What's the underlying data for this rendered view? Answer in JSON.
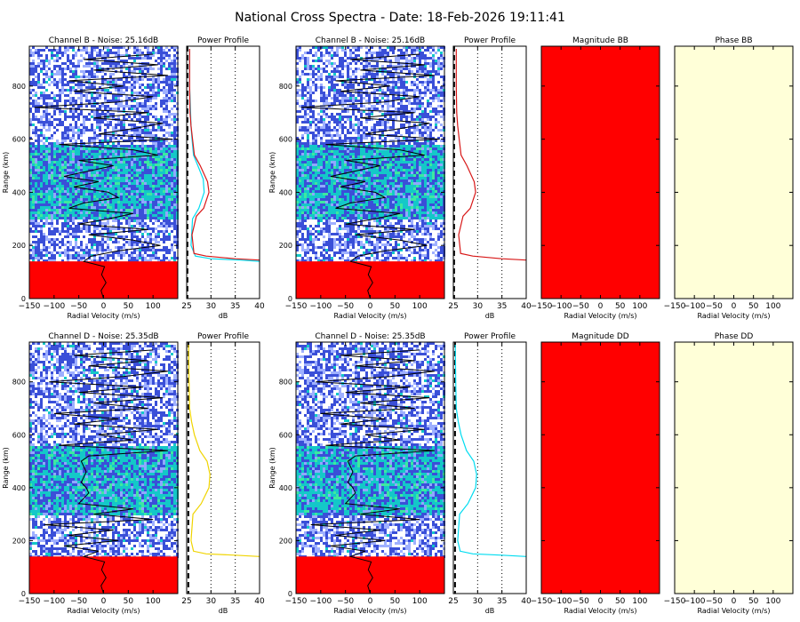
{
  "title": "National Cross Spectra - Date: 18-Feb-2026 19:11:41",
  "colors": {
    "spectrum_low": "#3a4fd8",
    "spectrum_mid": "#14c8c8",
    "spectrum_high": "#3ee8a0",
    "clutter": "#ff0000",
    "magnitude_fill": "#ff0000",
    "phase_fill": "#ffffd8",
    "profile_cyan": "#00dcf0",
    "profile_red": "#d81818",
    "profile_yellow": "#f0d400"
  },
  "chart_data": [
    {
      "id": "spec_B_1",
      "type": "heatmap",
      "title": "Channel B - Noise: 25.16dB",
      "xlabel": "Radial Velocity (m/s)",
      "ylabel": "Range (km)",
      "xlim": [
        -150,
        150
      ],
      "ylim": [
        0,
        950
      ],
      "xticks": [
        -150,
        -100,
        -50,
        0,
        50,
        100
      ],
      "yticks": [
        0,
        200,
        400,
        600,
        800
      ],
      "clutter_below_km": 140,
      "signal_band_km": [
        300,
        580
      ],
      "doppler_trace": {
        "range_km": [
          0,
          30,
          60,
          90,
          120,
          140,
          160,
          180,
          200,
          220,
          240,
          260,
          280,
          300,
          320,
          340,
          360,
          380,
          400,
          420,
          440,
          460,
          480,
          500,
          520,
          540,
          560,
          580,
          600,
          620,
          640,
          660,
          680,
          700,
          720,
          740,
          760,
          780,
          800,
          820,
          840,
          860,
          880,
          900,
          920
        ],
        "velocity_ms": [
          0,
          -5,
          5,
          -4,
          2,
          -40,
          -25,
          30,
          115,
          60,
          -30,
          90,
          -50,
          10,
          60,
          -70,
          -40,
          30,
          10,
          -60,
          -10,
          -80,
          -30,
          20,
          -50,
          110,
          60,
          -90,
          140,
          -10,
          60,
          120,
          -20,
          90,
          -140,
          30,
          100,
          -60,
          40,
          -70,
          130,
          -20,
          110,
          -40,
          100
        ]
      }
    },
    {
      "id": "power_B_1",
      "type": "line",
      "title": "Power Profile",
      "xlabel": "dB",
      "ylabel": "",
      "xlim": [
        25,
        40
      ],
      "ylim": [
        0,
        950
      ],
      "xticks": [
        25,
        30,
        35,
        40
      ],
      "noise_db": 25.16,
      "series": [
        {
          "color": "cyan",
          "x": [
            40,
            36,
            30,
            26.8,
            25.9,
            26.2,
            27.5,
            28.6,
            28.4,
            27.3,
            26.4,
            26.1,
            25.9,
            25.8,
            25.6,
            25.6
          ],
          "y": [
            140,
            145,
            150,
            160,
            200,
            300,
            340,
            400,
            450,
            500,
            540,
            600,
            650,
            700,
            800,
            940
          ]
        },
        {
          "color": "red",
          "x": [
            40,
            35,
            29,
            26.5,
            26.1,
            27,
            28.5,
            29.6,
            29.3,
            27.8,
            26.6,
            26.2,
            25.9,
            25.7,
            25.6,
            25.6
          ],
          "y": [
            145,
            150,
            160,
            170,
            240,
            310,
            340,
            400,
            440,
            500,
            540,
            600,
            650,
            700,
            800,
            940
          ]
        }
      ]
    },
    {
      "id": "spec_B_2",
      "type": "heatmap",
      "title": "Channel B - Noise: 25.16dB",
      "xlabel": "Radial Velocity (m/s)",
      "ylabel": "Range (km)",
      "xlim": [
        -150,
        150
      ],
      "ylim": [
        0,
        950
      ],
      "xticks": [
        -150,
        -100,
        -50,
        0,
        50,
        100
      ],
      "yticks": [
        0,
        200,
        400,
        600,
        800
      ],
      "clutter_below_km": 140,
      "signal_band_km": [
        300,
        580
      ],
      "doppler_trace": {
        "range_km": [
          0,
          30,
          60,
          90,
          120,
          140,
          160,
          180,
          200,
          220,
          240,
          260,
          280,
          300,
          320,
          340,
          360,
          380,
          400,
          420,
          440,
          460,
          480,
          500,
          520,
          540,
          560,
          580,
          600,
          620,
          640,
          660,
          680,
          700,
          720,
          740,
          760,
          780,
          800,
          820,
          840,
          860,
          880,
          900,
          920
        ],
        "velocity_ms": [
          0,
          -5,
          5,
          -4,
          2,
          -40,
          -25,
          30,
          115,
          60,
          -30,
          90,
          -50,
          10,
          60,
          -70,
          -40,
          30,
          10,
          -60,
          -10,
          -80,
          -30,
          20,
          -50,
          110,
          60,
          -90,
          140,
          -10,
          60,
          120,
          -20,
          90,
          -140,
          30,
          100,
          -60,
          40,
          -70,
          130,
          -20,
          110,
          -40,
          100
        ]
      }
    },
    {
      "id": "power_B_2",
      "type": "line",
      "title": "Power Profile",
      "xlabel": "dB",
      "ylabel": "",
      "xlim": [
        25,
        40
      ],
      "ylim": [
        0,
        950
      ],
      "xticks": [
        25,
        30,
        35,
        40
      ],
      "noise_db": 25.16,
      "series": [
        {
          "color": "red",
          "x": [
            40,
            35,
            29,
            26.5,
            26.1,
            27,
            28.5,
            29.6,
            29.3,
            27.8,
            26.6,
            26.2,
            25.9,
            25.7,
            25.6,
            25.6
          ],
          "y": [
            145,
            150,
            160,
            170,
            240,
            310,
            340,
            400,
            440,
            500,
            540,
            600,
            650,
            700,
            800,
            940
          ]
        }
      ]
    },
    {
      "id": "mag_BB",
      "type": "heatmap",
      "title": "Magnitude BB",
      "xlabel": "Radial Velocity (m/s)",
      "ylabel": "",
      "xlim": [
        -150,
        150
      ],
      "ylim": [
        0,
        950
      ],
      "xticks": [
        -150,
        -100,
        -50,
        0,
        50,
        100
      ],
      "yticks": [
        0,
        200,
        400,
        600,
        800
      ]
    },
    {
      "id": "phase_BB",
      "type": "heatmap",
      "title": "Phase BB",
      "xlabel": "Radial Velocity (m/s)",
      "ylabel": "",
      "xlim": [
        -150,
        150
      ],
      "ylim": [
        0,
        950
      ],
      "xticks": [
        -150,
        -100,
        -50,
        0,
        50,
        100
      ],
      "yticks": [
        0,
        200,
        400,
        600,
        800
      ]
    },
    {
      "id": "spec_D_1",
      "type": "heatmap",
      "title": "Channel D - Noise: 25.35dB",
      "xlabel": "Radial Velocity (m/s)",
      "ylabel": "Range (km)",
      "xlim": [
        -150,
        150
      ],
      "ylim": [
        0,
        950
      ],
      "xticks": [
        -150,
        -100,
        -50,
        0,
        50,
        100
      ],
      "yticks": [
        0,
        200,
        400,
        600,
        800
      ],
      "clutter_below_km": 140,
      "signal_band_km": [
        300,
        560
      ],
      "doppler_trace": {
        "range_km": [
          0,
          30,
          60,
          90,
          120,
          140,
          160,
          180,
          200,
          220,
          240,
          260,
          280,
          300,
          320,
          340,
          360,
          380,
          400,
          420,
          440,
          460,
          480,
          500,
          520,
          540,
          560,
          580,
          600,
          620,
          640,
          660,
          680,
          700,
          720,
          740,
          760,
          780,
          800,
          820,
          840,
          860,
          880,
          900,
          920
        ],
        "velocity_ms": [
          0,
          -5,
          5,
          -4,
          2,
          -40,
          -10,
          -80,
          30,
          -70,
          20,
          -120,
          100,
          -20,
          60,
          -50,
          -40,
          -30,
          -35,
          -45,
          -40,
          -35,
          -40,
          -45,
          -30,
          130,
          -90,
          60,
          -10,
          110,
          -60,
          30,
          -100,
          90,
          -20,
          120,
          -50,
          80,
          -110,
          40,
          130,
          -30,
          90,
          -60,
          100
        ]
      }
    },
    {
      "id": "power_D_1",
      "type": "line",
      "title": "Power Profile",
      "xlabel": "dB",
      "ylabel": "",
      "xlim": [
        25,
        40
      ],
      "ylim": [
        0,
        950
      ],
      "xticks": [
        25,
        30,
        35,
        40
      ],
      "noise_db": 25.35,
      "series": [
        {
          "color": "yellow",
          "x": [
            40,
            35,
            29,
            26.4,
            25.9,
            26.3,
            28,
            29.6,
            29.8,
            29.2,
            27.7,
            26.6,
            26,
            25.6,
            25.5,
            25.4
          ],
          "y": [
            140,
            145,
            150,
            160,
            200,
            300,
            340,
            400,
            450,
            500,
            540,
            600,
            650,
            700,
            800,
            940
          ]
        }
      ]
    },
    {
      "id": "spec_D_2",
      "type": "heatmap",
      "title": "Channel D - Noise: 25.35dB",
      "xlabel": "Radial Velocity (m/s)",
      "ylabel": "Range (km)",
      "xlim": [
        -150,
        150
      ],
      "ylim": [
        0,
        950
      ],
      "xticks": [
        -150,
        -100,
        -50,
        0,
        50,
        100
      ],
      "yticks": [
        0,
        200,
        400,
        600,
        800
      ],
      "clutter_below_km": 140,
      "signal_band_km": [
        300,
        560
      ],
      "doppler_trace": {
        "range_km": [
          0,
          30,
          60,
          90,
          120,
          140,
          160,
          180,
          200,
          220,
          240,
          260,
          280,
          300,
          320,
          340,
          360,
          380,
          400,
          420,
          440,
          460,
          480,
          500,
          520,
          540,
          560,
          580,
          600,
          620,
          640,
          660,
          680,
          700,
          720,
          740,
          760,
          780,
          800,
          820,
          840,
          860,
          880,
          900,
          920
        ],
        "velocity_ms": [
          0,
          -5,
          5,
          -4,
          2,
          -40,
          -10,
          -80,
          30,
          -70,
          20,
          -120,
          100,
          -20,
          60,
          -50,
          -40,
          -30,
          -35,
          -45,
          -40,
          -35,
          -40,
          -45,
          -30,
          130,
          -90,
          60,
          -10,
          110,
          -60,
          30,
          -100,
          90,
          -20,
          120,
          -50,
          80,
          -110,
          40,
          130,
          -30,
          90,
          -60,
          100
        ]
      }
    },
    {
      "id": "power_D_2",
      "type": "line",
      "title": "Power Profile",
      "xlabel": "dB",
      "ylabel": "",
      "xlim": [
        25,
        40
      ],
      "ylim": [
        0,
        950
      ],
      "xticks": [
        25,
        30,
        35,
        40
      ],
      "noise_db": 25.35,
      "series": [
        {
          "color": "cyan",
          "x": [
            40,
            35,
            29,
            26.4,
            25.9,
            26.3,
            28,
            29.6,
            29.8,
            29.2,
            27.7,
            26.6,
            26,
            25.6,
            25.5,
            25.4
          ],
          "y": [
            140,
            145,
            150,
            160,
            200,
            300,
            340,
            400,
            450,
            500,
            540,
            600,
            650,
            700,
            800,
            940
          ]
        }
      ]
    },
    {
      "id": "mag_DD",
      "type": "heatmap",
      "title": "Magnitude DD",
      "xlabel": "Radial Velocity (m/s)",
      "ylabel": "",
      "xlim": [
        -150,
        150
      ],
      "ylim": [
        0,
        950
      ],
      "xticks": [
        -150,
        -100,
        -50,
        0,
        50,
        100
      ],
      "yticks": [
        0,
        200,
        400,
        600,
        800
      ]
    },
    {
      "id": "phase_DD",
      "type": "heatmap",
      "title": "Phase DD",
      "xlabel": "Radial Velocity (m/s)",
      "ylabel": "",
      "xlim": [
        -150,
        150
      ],
      "ylim": [
        0,
        950
      ],
      "xticks": [
        -150,
        -100,
        -50,
        0,
        50,
        100
      ],
      "yticks": [
        0,
        200,
        400,
        600,
        800
      ]
    }
  ]
}
